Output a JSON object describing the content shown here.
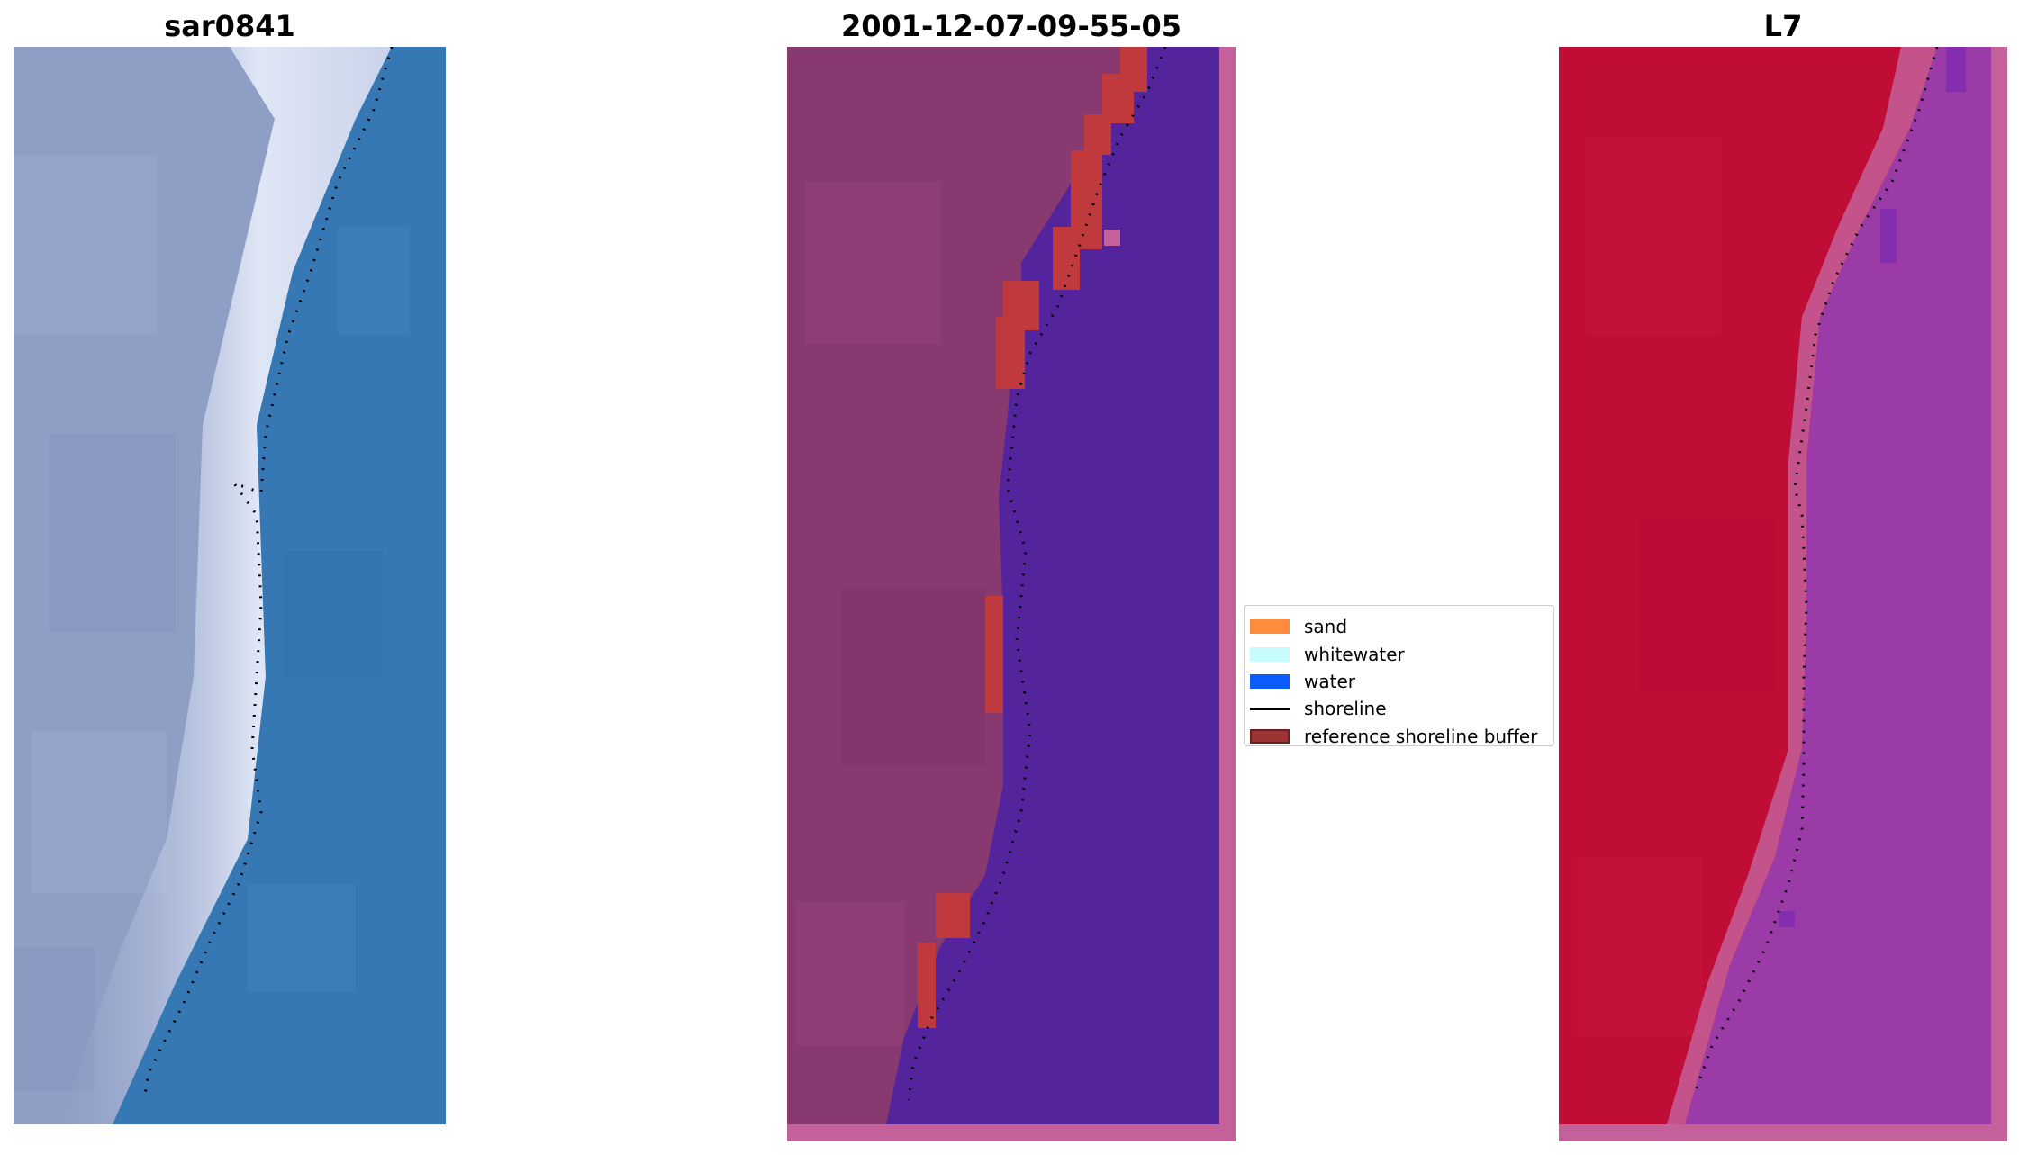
{
  "panels": [
    {
      "title": "sar0841"
    },
    {
      "title": "2001-12-07-09-55-05"
    },
    {
      "title": "L7"
    }
  ],
  "legend": {
    "items": [
      {
        "label": "sand",
        "color": "#ff8c3a",
        "kind": "patch"
      },
      {
        "label": "whitewater",
        "color": "#c8fbfb",
        "kind": "patch"
      },
      {
        "label": "water",
        "color": "#0a5cff",
        "kind": "patch"
      },
      {
        "label": "shoreline",
        "color": "#000000",
        "kind": "line"
      },
      {
        "label": "reference shoreline buffer",
        "color": "#9b3535",
        "kind": "patch-outline"
      }
    ]
  },
  "colors": {
    "rgb_land": "#8f9ec4",
    "rgb_beach": "#dfe6f5",
    "rgb_water": "#3578b4",
    "classified_land": "#88396f",
    "classified_water": "#53249b",
    "classified_border": "#c4609a",
    "buffer": "#c0393d",
    "mndwi_land": "#c00d36",
    "mndwi_water": "#9a3ba8",
    "mndwi_border": "#c4609a"
  }
}
